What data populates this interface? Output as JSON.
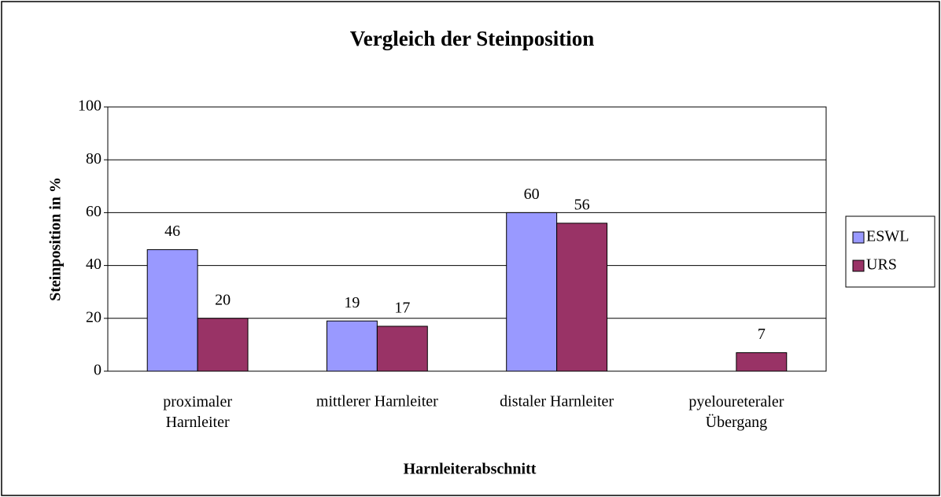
{
  "chart_data": {
    "type": "bar",
    "title": "Vergleich der Steinposition",
    "xlabel": "Harnleiterabschnitt",
    "ylabel": "Steinposition in %",
    "categories": [
      "proximaler\nHarnleiter",
      "mittlerer Harnleiter",
      "distaler Harnleiter",
      "pyeloureteraler\nÜbergang"
    ],
    "series": [
      {
        "name": "ESWL",
        "color": "#9999ff",
        "values": [
          46,
          19,
          60,
          null
        ]
      },
      {
        "name": "URS",
        "color": "#993366",
        "values": [
          20,
          17,
          56,
          7
        ]
      }
    ],
    "ylim": [
      0,
      100
    ],
    "yticks": [
      0,
      20,
      40,
      60,
      80,
      100
    ],
    "grid": true,
    "legend": "right"
  }
}
